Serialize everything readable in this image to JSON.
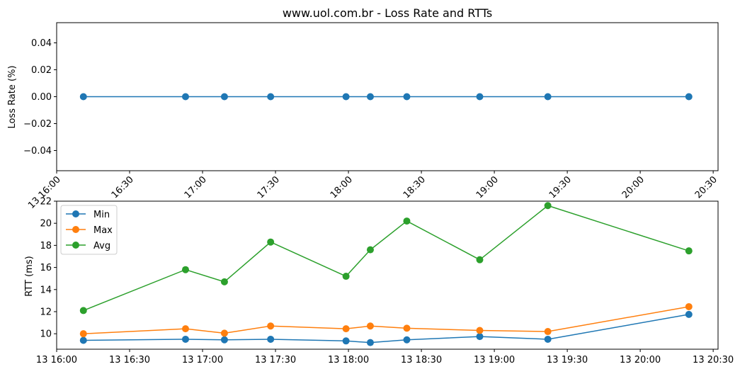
{
  "chart_data": [
    {
      "type": "line",
      "title": "www.uol.com.br - Loss Rate and RTTs",
      "xlabel": "",
      "ylabel": "Loss Rate (%)",
      "ylim": [
        -0.055,
        0.055
      ],
      "yticks": [
        "0.04",
        "0.02",
        "0.00",
        "−0.02",
        "−0.04"
      ],
      "ytick_values": [
        0.04,
        0.02,
        0.0,
        -0.02,
        -0.04
      ],
      "xlim": [
        "2000-01-13 16:00",
        "2000-01-13 20:32"
      ],
      "xtick_labels": [
        "13 16:00",
        "16:30",
        "17:00",
        "17:30",
        "18:00",
        "18:30",
        "19:00",
        "19:30",
        "20:00",
        "20:30"
      ],
      "xtick_times": [
        "2000-01-13 16:00",
        "2000-01-13 16:30",
        "2000-01-13 17:00",
        "2000-01-13 17:30",
        "2000-01-13 18:00",
        "2000-01-13 18:30",
        "2000-01-13 19:00",
        "2000-01-13 19:30",
        "2000-01-13 20:00",
        "2000-01-13 20:30"
      ],
      "xtick_rotation": "45deg",
      "x": [
        "2000-01-13 16:11",
        "2000-01-13 16:53",
        "2000-01-13 17:09",
        "2000-01-13 17:28",
        "2000-01-13 17:59",
        "2000-01-13 18:09",
        "2000-01-13 18:24",
        "2000-01-13 18:54",
        "2000-01-13 19:22",
        "2000-01-13 20:20"
      ],
      "series": [
        {
          "name": "",
          "color": "#1f77b4",
          "values": [
            0,
            0,
            0,
            0,
            0,
            0,
            0,
            0,
            0,
            0
          ]
        }
      ],
      "grid": false,
      "legend": "none"
    },
    {
      "type": "line",
      "title": "",
      "xlabel": "",
      "ylabel": "RTT (ms)",
      "ylim": [
        8.6,
        22.0
      ],
      "yticks": [
        "10",
        "12",
        "14",
        "16",
        "18",
        "20",
        "22"
      ],
      "ytick_values": [
        10,
        12,
        14,
        16,
        18,
        20,
        22
      ],
      "xlim": [
        "2000-01-13 16:00",
        "2000-01-13 20:32"
      ],
      "xtick_labels": [
        "13 16:00",
        "13 16:30",
        "13 17:00",
        "13 17:30",
        "13 18:00",
        "13 18:30",
        "13 19:00",
        "13 19:30",
        "13 20:00",
        "13 20:30"
      ],
      "xtick_times": [
        "2000-01-13 16:00",
        "2000-01-13 16:30",
        "2000-01-13 17:00",
        "2000-01-13 17:30",
        "2000-01-13 18:00",
        "2000-01-13 18:30",
        "2000-01-13 19:00",
        "2000-01-13 19:30",
        "2000-01-13 20:00",
        "2000-01-13 20:30"
      ],
      "x": [
        "2000-01-13 16:11",
        "2000-01-13 16:53",
        "2000-01-13 17:09",
        "2000-01-13 17:28",
        "2000-01-13 17:59",
        "2000-01-13 18:09",
        "2000-01-13 18:24",
        "2000-01-13 18:54",
        "2000-01-13 19:22",
        "2000-01-13 20:20"
      ],
      "series": [
        {
          "name": "Min",
          "color": "#1f77b4",
          "values": [
            9.4,
            9.5,
            9.45,
            9.5,
            9.35,
            9.2,
            9.45,
            9.75,
            9.5,
            11.75
          ]
        },
        {
          "name": "Max",
          "color": "#ff7f0e",
          "values": [
            10.0,
            10.45,
            10.05,
            10.7,
            10.45,
            10.7,
            10.5,
            10.3,
            10.2,
            12.45
          ]
        },
        {
          "name": "Avg",
          "color": "#2ca02c",
          "values": [
            12.1,
            15.8,
            14.7,
            18.3,
            15.2,
            17.6,
            20.2,
            16.7,
            21.6,
            17.5
          ]
        }
      ],
      "grid": false,
      "legend": "top-left"
    }
  ]
}
